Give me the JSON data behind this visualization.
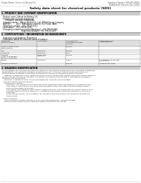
{
  "header_left": "Product Name: Lithium Ion Battery Cell",
  "header_right_line1": "Substance Number: SDS-003-00019",
  "header_right_line2": "Established / Revision: Dec.1.2016",
  "title": "Safety data sheet for chemical products (SDS)",
  "section1_title": "1. PRODUCT AND COMPANY IDENTIFICATION",
  "section1_lines": [
    "· Product name: Lithium Ion Battery Cell",
    "· Product code: Cylindrical-type cell",
    "     (IFR18650, IFR14500, IFR16650A)",
    "· Company name:     Banpu Electric Co., Ltd., Middle Energy Company",
    "· Address:          2021  Kaminakura, Sumoto-City, Hyogo, Japan",
    "· Telephone number:   +81-799-20-4111",
    "· Fax number:   +81-799-26-4120",
    "· Emergency telephone number (Weekdays): +81-799-20-2662",
    "                                    (Night and holidays): +81-799-26-4120"
  ],
  "section2_title": "2. COMPOSITIONS / INFORMATION ON INGREDIENTS",
  "section2_pre": [
    "· Substance or preparation: Preparation",
    "· Information about the chemical nature of product:"
  ],
  "table_headers": [
    "Component\n(Several names)",
    "CAS number",
    "Concentration /\nConcentration range\n(in wt%)",
    "Classification and\nhazard labeling"
  ],
  "table_rows": [
    [
      "Lithium cobalt oxide\n(LiMn/CoNiO₂)",
      "-",
      "30-45%",
      "-"
    ],
    [
      "Iron",
      "7439-89-6",
      "15-25%",
      "-"
    ],
    [
      "Aluminum",
      "7429-90-5",
      "2-5%",
      "-"
    ],
    [
      "Graphite\n(flake or graphite-I)\n(artificial graphite)",
      "77782-42-5\n7782-44-0",
      "10-25%",
      "-"
    ],
    [
      "Copper",
      "7440-50-8",
      "5-15%",
      "Sensitization of the skin\ngroup No.2"
    ],
    [
      "Organic electrolyte",
      "-",
      "10-25%",
      "Inflammable liquid"
    ]
  ],
  "section3_title": "3. HAZARDS IDENTIFICATION",
  "section3_paras": [
    "For the battery cell, chemical materials are stored in a hermetically sealed metal case, designed to withstand",
    "temperatures and pressures-conditions during normal use. As a result, during normal use, there is no",
    "physical danger of ignition or explosion and there is no danger of hazardous materials leakage.",
    "    However, if exposed to a fire, added mechanical shocks, decomposed, written alarms without any measure,",
    "the gas release vent can be operated. The battery cell case will be breached or fire-patterns, hazardous",
    "materials may be released.",
    "    Moreover, if heated strongly by the surrounding fire, solid gas may be emitted."
  ],
  "section3_bullets": [
    "· Most important hazard and effects:",
    "    Human health effects:",
    "        Inhalation: The release of the electrolyte has an anesthesia action and stimulates a respiratory tract.",
    "        Skin contact: The release of the electrolyte stimulates a skin. The electrolyte skin contact causes a",
    "        sore and stimulation on the skin.",
    "        Eye contact: The release of the electrolyte stimulates eyes. The electrolyte eye contact causes a sore",
    "        and stimulation on the eye. Especially, a substance that causes a strong inflammation of the eye is",
    "        contained.",
    "        Environmental effects: Since a battery cell remains in the environment, do not throw out it into the",
    "        environment.",
    "",
    "· Specific hazards:",
    "    If the electrolyte contacts with water, it will generate detrimental hydrogen fluoride.",
    "    Since the used electrolyte is inflammable liquid, do not bring close to fire."
  ],
  "bg_color": "#ffffff",
  "text_color": "#000000",
  "gray_header": "#cccccc"
}
